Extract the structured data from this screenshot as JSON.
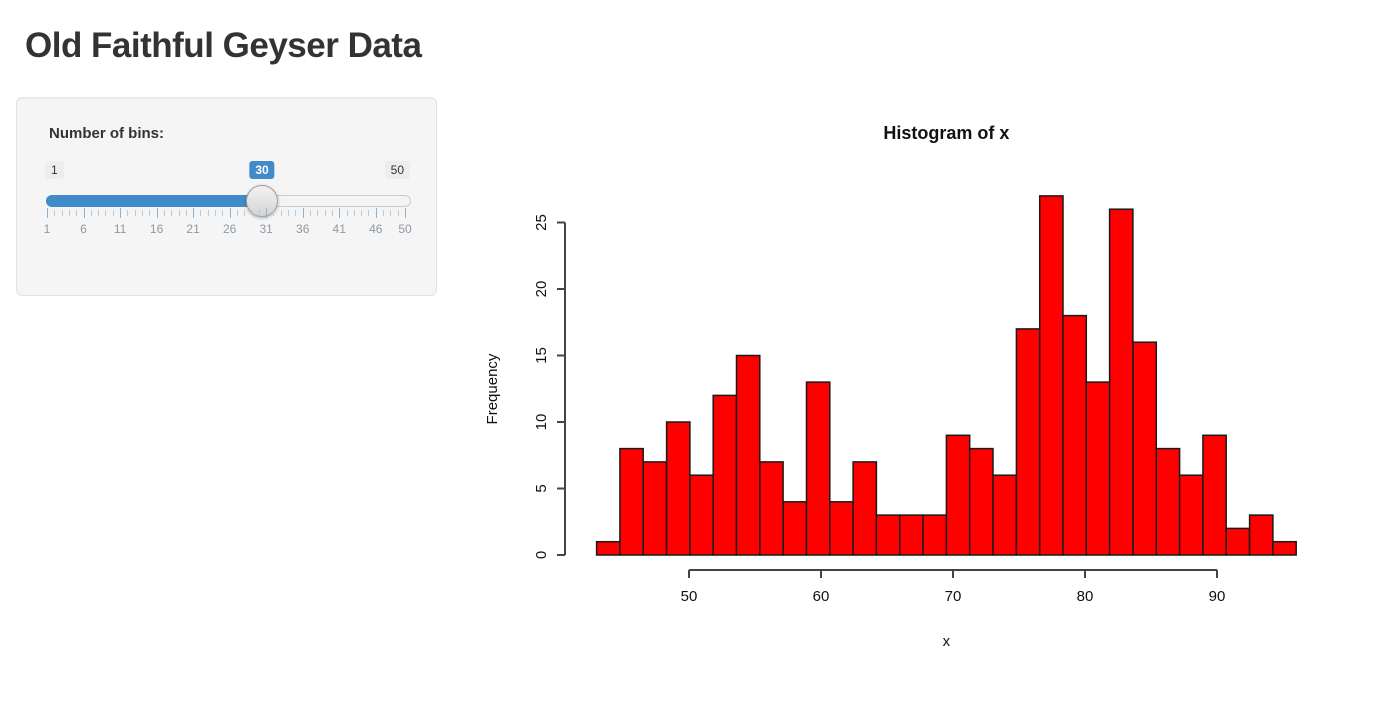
{
  "app": {
    "title": "Old Faithful Geyser Data"
  },
  "controls": {
    "bins_slider": {
      "label": "Number of bins:",
      "min_label": "1",
      "max_label": "50",
      "value_label": "30",
      "min_value": 1,
      "max_value": 50,
      "current_value": 30,
      "grid_labels": [
        1,
        6,
        11,
        16,
        21,
        26,
        31,
        36,
        41,
        46,
        50
      ]
    }
  },
  "chart_data": {
    "type": "bar",
    "subtype": "histogram",
    "title": "Histogram of x",
    "xlabel": "x",
    "ylabel": "Frequency",
    "bin_start": 43,
    "bin_end": 96,
    "bin_count": 30,
    "counts": [
      1,
      8,
      7,
      10,
      6,
      12,
      15,
      7,
      4,
      13,
      4,
      7,
      3,
      3,
      3,
      9,
      8,
      6,
      17,
      27,
      18,
      13,
      26,
      16,
      8,
      6,
      9,
      2,
      3,
      1
    ],
    "x_ticks": [
      50,
      60,
      70,
      80,
      90
    ],
    "y_ticks": [
      0,
      5,
      10,
      15,
      20,
      25
    ],
    "xlim": [
      43,
      96
    ],
    "ylim": [
      0,
      27
    ],
    "grid": false,
    "legend": false,
    "bar_fill": "#FF0000",
    "bar_border": "#1a1a1a"
  },
  "colors": {
    "accent_blue": "#428bca",
    "panel_bg": "#f5f5f5",
    "panel_border": "#e3e3e3",
    "badge_bg": "#ededed",
    "title_text": "#333333",
    "grid_label": "#8f99a3"
  }
}
